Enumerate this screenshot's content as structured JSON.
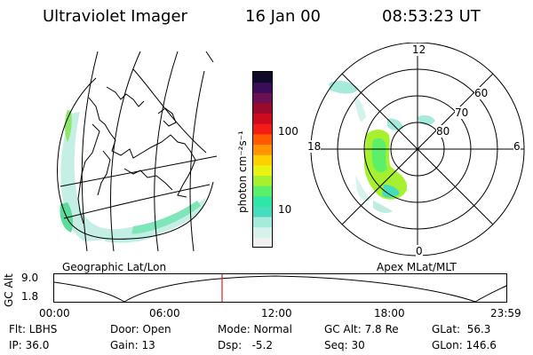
{
  "header": {
    "title": "Ultraviolet Imager",
    "date": "16 Jan 00",
    "time": "08:53:23 UT"
  },
  "left_map": {
    "label": "Geographic Lat/Lon"
  },
  "right_map": {
    "label": "Apex MLat/MLT",
    "mlt_labels": {
      "top": "12",
      "left": "18",
      "right": "6",
      "bottom": "0"
    },
    "lat_labels": [
      "60",
      "70",
      "80"
    ]
  },
  "colorbar": {
    "unit_label": "photon cm⁻²s⁻¹",
    "ticks": [
      "100",
      "10"
    ],
    "colors": [
      "#f0f0f0",
      "#d6f2ec",
      "#a6eadc",
      "#46dcbe",
      "#2ee6a6",
      "#5cf06a",
      "#a6f030",
      "#e8f410",
      "#ffd000",
      "#ff9400",
      "#ff5a00",
      "#f41c14",
      "#cc0c1e",
      "#9c0a2a",
      "#6c1054",
      "#3a0c5a",
      "#100a28"
    ]
  },
  "altitude_plot": {
    "ylabel": "GC Alt",
    "y_ticks": [
      "9.0",
      "1.8"
    ],
    "x_ticks": [
      "00:00",
      "06:00",
      "12:00",
      "18:00",
      "23:59"
    ],
    "marker_time": "08:53"
  },
  "status": {
    "flt": "Flt: LBHS",
    "ip": "IP: 36.0",
    "door": "Door: Open",
    "gain": "Gain: 13",
    "mode": "Mode: Normal",
    "dsp": "Dsp:   -5.2",
    "gcalt": "GC Alt: 7.8 Re",
    "seq": "Seq: 30",
    "glat": "GLat:  56.3",
    "glon": "GLon: 146.6"
  }
}
